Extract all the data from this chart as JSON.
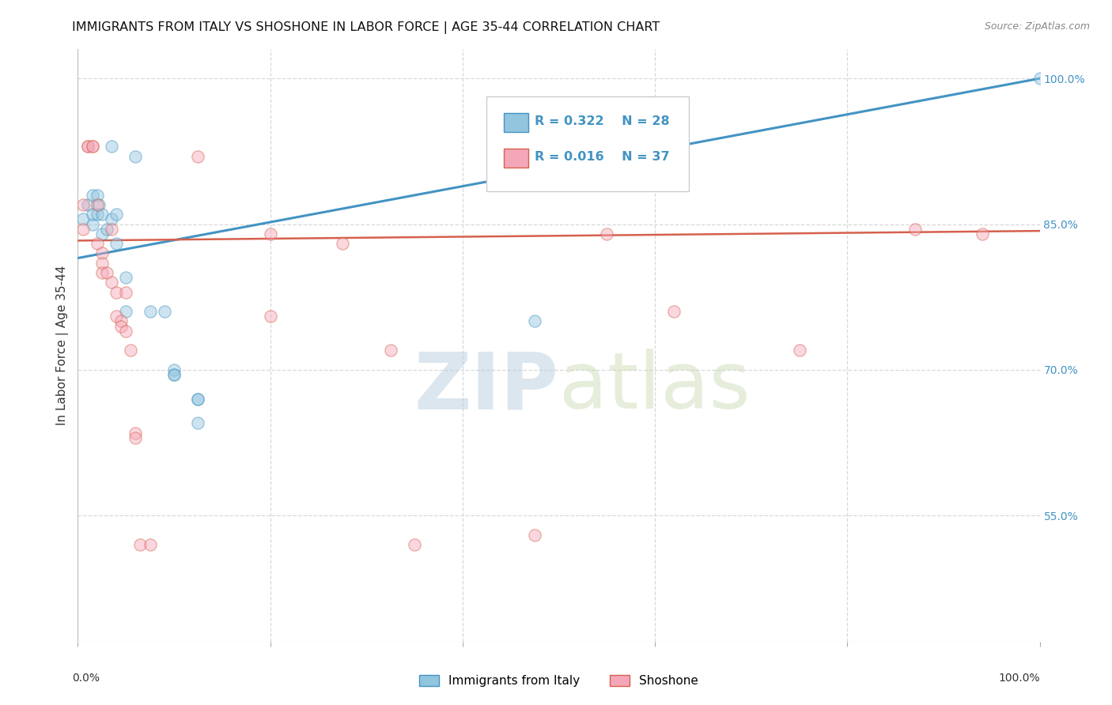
{
  "title": "IMMIGRANTS FROM ITALY VS SHOSHONE IN LABOR FORCE | AGE 35-44 CORRELATION CHART",
  "source": "Source: ZipAtlas.com",
  "ylabel": "In Labor Force | Age 35-44",
  "legend_blue_r": "R = 0.322",
  "legend_blue_n": "N = 28",
  "legend_pink_r": "R = 0.016",
  "legend_pink_n": "N = 37",
  "legend_label_blue": "Immigrants from Italy",
  "legend_label_pink": "Shoshone",
  "watermark_zip": "ZIP",
  "watermark_atlas": "atlas",
  "blue_scatter_x": [
    0.5,
    1.0,
    1.5,
    1.5,
    1.5,
    2.0,
    2.0,
    2.2,
    2.5,
    2.5,
    3.0,
    3.5,
    3.5,
    4.0,
    4.0,
    5.0,
    5.0,
    6.0,
    7.5,
    9.0,
    10.0,
    10.0,
    10.0,
    12.5,
    12.5,
    12.5,
    47.5,
    100.0
  ],
  "blue_scatter_y": [
    85.5,
    87.0,
    88.0,
    85.0,
    86.0,
    86.0,
    88.0,
    87.0,
    86.0,
    84.0,
    84.5,
    85.5,
    93.0,
    83.0,
    86.0,
    76.0,
    79.5,
    92.0,
    76.0,
    76.0,
    70.0,
    69.5,
    69.5,
    67.0,
    67.0,
    64.5,
    75.0,
    100.0
  ],
  "pink_scatter_x": [
    0.5,
    0.5,
    1.0,
    1.0,
    1.5,
    1.5,
    2.0,
    2.0,
    2.5,
    2.5,
    2.5,
    3.0,
    3.5,
    3.5,
    4.0,
    4.0,
    4.5,
    4.5,
    5.0,
    5.0,
    5.5,
    6.0,
    6.0,
    6.5,
    7.5,
    12.5,
    20.0,
    20.0,
    27.5,
    32.5,
    35.0,
    47.5,
    55.0,
    62.0,
    75.0,
    87.0,
    94.0
  ],
  "pink_scatter_y": [
    87.0,
    84.5,
    93.0,
    93.0,
    93.0,
    93.0,
    87.0,
    83.0,
    82.0,
    81.0,
    80.0,
    80.0,
    84.5,
    79.0,
    78.0,
    75.5,
    75.0,
    74.5,
    78.0,
    74.0,
    72.0,
    63.5,
    63.0,
    52.0,
    52.0,
    92.0,
    84.0,
    75.5,
    83.0,
    72.0,
    52.0,
    53.0,
    84.0,
    76.0,
    72.0,
    84.5,
    84.0
  ],
  "blue_line_x": [
    0.0,
    100.0
  ],
  "blue_line_y": [
    81.5,
    100.0
  ],
  "pink_line_x": [
    0.0,
    100.0
  ],
  "pink_line_y": [
    83.3,
    84.3
  ],
  "xlim": [
    0.0,
    100.0
  ],
  "ylim": [
    42.0,
    103.0
  ],
  "yticks": [
    55.0,
    70.0,
    85.0,
    100.0
  ],
  "ytick_labels": [
    "55.0%",
    "70.0%",
    "85.0%",
    "100.0%"
  ],
  "xtick_positions": [
    0.0,
    20.0,
    40.0,
    60.0,
    80.0,
    100.0
  ],
  "blue_color": "#92c5de",
  "pink_color": "#f4a7b9",
  "blue_line_color": "#4393c3",
  "pink_line_color": "#d6604d",
  "bg_color": "#ffffff",
  "grid_color": "#d9d9d9",
  "title_fontsize": 11.5,
  "axis_label_fontsize": 11,
  "tick_label_fontsize": 10,
  "scatter_size": 120,
  "scatter_alpha": 0.45,
  "scatter_linewidth": 1.0
}
